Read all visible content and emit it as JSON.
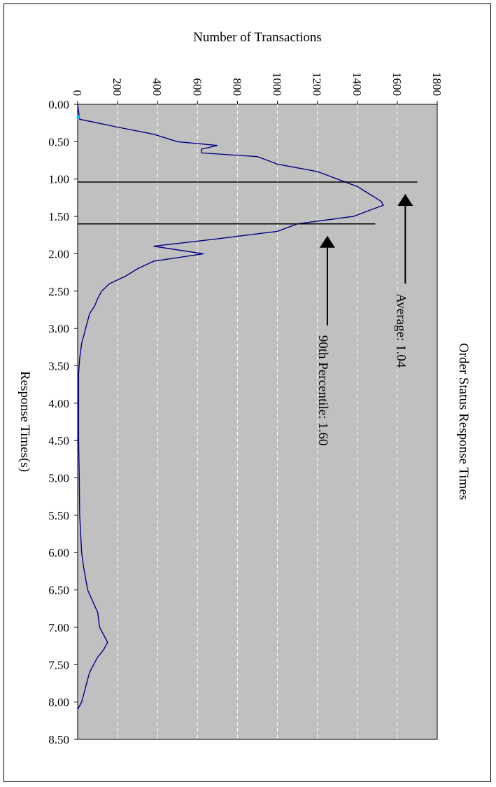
{
  "chart_data": {
    "type": "line",
    "title": "Order Status Response Times",
    "xlabel": "Response Times(s)",
    "ylabel": "Number of Transactions",
    "xlim": [
      0,
      8.5
    ],
    "ylim": [
      0,
      1800
    ],
    "x_ticks": [
      "0.00",
      "0.50",
      "1.00",
      "1.50",
      "2.00",
      "2.50",
      "3.00",
      "3.50",
      "4.00",
      "4.50",
      "5.00",
      "5.50",
      "6.00",
      "6.50",
      "7.00",
      "7.50",
      "8.00",
      "8.50"
    ],
    "y_ticks": [
      "0",
      "200",
      "400",
      "600",
      "800",
      "1000",
      "1200",
      "1400",
      "1600",
      "1800"
    ],
    "grid": "dashed vertical",
    "colors": {
      "line": "#000080",
      "plot_bg": "#c0c0c0",
      "grid": "#ffffff",
      "marker": "#00c0ff"
    },
    "series": [
      {
        "values": [
          [
            0.0,
            0
          ],
          [
            0.1,
            5
          ],
          [
            0.2,
            10
          ],
          [
            0.3,
            190
          ],
          [
            0.4,
            380
          ],
          [
            0.5,
            500
          ],
          [
            0.55,
            700
          ],
          [
            0.6,
            620
          ],
          [
            0.65,
            620
          ],
          [
            0.7,
            900
          ],
          [
            0.8,
            1000
          ],
          [
            0.9,
            1200
          ],
          [
            1.0,
            1300
          ],
          [
            1.1,
            1400
          ],
          [
            1.2,
            1460
          ],
          [
            1.3,
            1520
          ],
          [
            1.35,
            1530
          ],
          [
            1.4,
            1480
          ],
          [
            1.5,
            1380
          ],
          [
            1.6,
            1100
          ],
          [
            1.7,
            1000
          ],
          [
            1.8,
            700
          ],
          [
            1.9,
            380
          ],
          [
            2.0,
            630
          ],
          [
            2.1,
            380
          ],
          [
            2.2,
            300
          ],
          [
            2.3,
            240
          ],
          [
            2.4,
            160
          ],
          [
            2.5,
            120
          ],
          [
            2.6,
            100
          ],
          [
            2.7,
            85
          ],
          [
            2.8,
            60
          ],
          [
            2.9,
            50
          ],
          [
            3.0,
            40
          ],
          [
            3.1,
            30
          ],
          [
            3.2,
            20
          ],
          [
            3.4,
            10
          ],
          [
            3.6,
            5
          ],
          [
            4.0,
            5
          ],
          [
            4.5,
            5
          ],
          [
            5.0,
            8
          ],
          [
            5.5,
            10
          ],
          [
            6.0,
            20
          ],
          [
            6.2,
            30
          ],
          [
            6.5,
            50
          ],
          [
            6.8,
            100
          ],
          [
            7.0,
            110
          ],
          [
            7.2,
            150
          ],
          [
            7.3,
            130
          ],
          [
            7.4,
            100
          ],
          [
            7.5,
            80
          ],
          [
            7.6,
            60
          ],
          [
            7.7,
            50
          ],
          [
            7.8,
            40
          ],
          [
            7.9,
            30
          ],
          [
            8.0,
            20
          ],
          [
            8.05,
            10
          ],
          [
            8.1,
            0
          ]
        ]
      }
    ],
    "markers": [
      {
        "label": "Average: 1.04",
        "x": 1.04,
        "arrow_y": 1640
      },
      {
        "label": "90th Percentile: 1.60",
        "x": 1.6,
        "arrow_y": 1250
      }
    ]
  }
}
